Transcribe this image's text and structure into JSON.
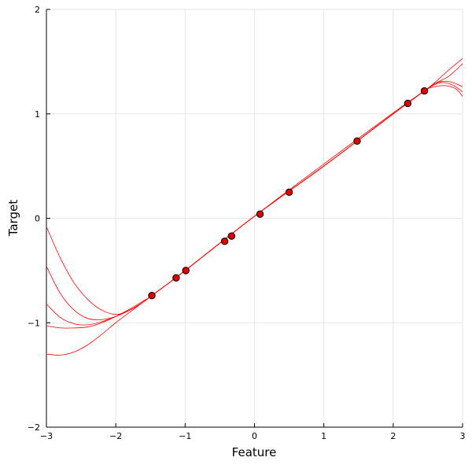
{
  "chart_data": {
    "type": "line",
    "title": "",
    "xlabel": "Feature",
    "ylabel": "Target",
    "xlim": [
      -3,
      3
    ],
    "ylim": [
      -2,
      2
    ],
    "xticks": [
      -3,
      -2,
      -1,
      0,
      1,
      2,
      3
    ],
    "yticks": [
      -2,
      -1,
      0,
      1,
      2
    ],
    "xtick_labels": [
      "−3",
      "−2",
      "−1",
      "0",
      "1",
      "2",
      "3"
    ],
    "ytick_labels": [
      "−2",
      "−1",
      "0",
      "1",
      "2"
    ],
    "grid": true,
    "legend": "none",
    "series_color": "#ff0000",
    "point_fill": "#e00000",
    "points": {
      "x": [
        -1.48,
        -1.13,
        -0.99,
        -0.43,
        -0.33,
        0.08,
        0.5,
        1.48,
        2.21,
        2.45
      ],
      "y": [
        -0.74,
        -0.57,
        -0.5,
        -0.22,
        -0.17,
        0.04,
        0.25,
        0.74,
        1.1,
        1.22
      ]
    },
    "series": [
      {
        "x": [
          -3.0,
          -2.8,
          -2.6,
          -2.4,
          -2.2,
          -2.0,
          -1.8,
          -1.6,
          -1.48,
          -1.0,
          0.0,
          1.0,
          2.0,
          2.45,
          2.6,
          2.8,
          3.0
        ],
        "y": [
          -0.08,
          -0.38,
          -0.62,
          -0.78,
          -0.88,
          -0.92,
          -0.88,
          -0.8,
          -0.74,
          -0.5,
          0.02,
          0.5,
          1.0,
          1.22,
          1.3,
          1.42,
          1.53
        ]
      },
      {
        "x": [
          -3.0,
          -2.8,
          -2.6,
          -2.4,
          -2.2,
          -2.0,
          -1.8,
          -1.6,
          -1.48,
          -1.0,
          0.0,
          1.0,
          2.0,
          2.45,
          2.6,
          2.8,
          3.0
        ],
        "y": [
          -0.46,
          -0.72,
          -0.88,
          -0.96,
          -0.97,
          -0.94,
          -0.88,
          -0.8,
          -0.74,
          -0.5,
          0.02,
          0.5,
          1.0,
          1.22,
          1.29,
          1.36,
          1.48
        ]
      },
      {
        "x": [
          -3.0,
          -2.8,
          -2.6,
          -2.4,
          -2.2,
          -2.0,
          -1.8,
          -1.6,
          -1.48,
          -1.0,
          0.0,
          1.0,
          2.0,
          2.45,
          2.6,
          2.7,
          2.8,
          2.9,
          3.0
        ],
        "y": [
          -0.82,
          -0.95,
          -1.01,
          -1.02,
          -0.99,
          -0.94,
          -0.88,
          -0.8,
          -0.74,
          -0.5,
          0.02,
          0.52,
          1.01,
          1.22,
          1.28,
          1.3,
          1.29,
          1.26,
          1.21
        ]
      },
      {
        "x": [
          -3.0,
          -2.8,
          -2.6,
          -2.4,
          -2.2,
          -2.0,
          -1.8,
          -1.6,
          -1.48,
          -1.0,
          0.0,
          1.0,
          2.0,
          2.45,
          2.6,
          2.7,
          2.8,
          2.9,
          3.0
        ],
        "y": [
          -1.03,
          -1.05,
          -1.05,
          -1.04,
          -1.0,
          -0.94,
          -0.87,
          -0.79,
          -0.74,
          -0.5,
          0.02,
          0.5,
          1.0,
          1.22,
          1.29,
          1.31,
          1.31,
          1.29,
          1.26
        ]
      },
      {
        "x": [
          -3.0,
          -2.8,
          -2.6,
          -2.4,
          -2.2,
          -2.0,
          -1.8,
          -1.6,
          -1.48,
          -1.0,
          0.0,
          1.0,
          2.0,
          2.45,
          2.6,
          2.75,
          2.9,
          3.0
        ],
        "y": [
          -1.3,
          -1.31,
          -1.28,
          -1.21,
          -1.11,
          -1.0,
          -0.9,
          -0.8,
          -0.74,
          -0.5,
          0.02,
          0.5,
          1.0,
          1.22,
          1.26,
          1.27,
          1.24,
          1.17
        ]
      }
    ]
  }
}
